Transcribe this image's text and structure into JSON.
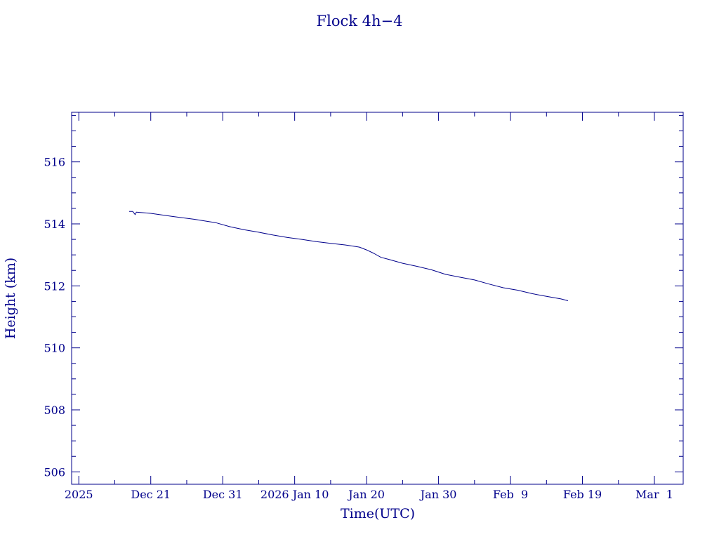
{
  "chart_data": {
    "type": "line",
    "title": "Flock 4h−4",
    "xlabel": "Time(UTC)",
    "ylabel": "Height (km)",
    "x_type": "date",
    "xlim": [
      "2025-12-10",
      "2026-03-05"
    ],
    "ylim": [
      505.6,
      517.6
    ],
    "x_ticks": [
      {
        "value": "2025-12-11",
        "label": "2025"
      },
      {
        "value": "2025-12-21",
        "label": "Dec 21"
      },
      {
        "value": "2025-12-31",
        "label": "Dec 31"
      },
      {
        "value": "2026-01-10",
        "label": "2026 Jan 10"
      },
      {
        "value": "2026-01-20",
        "label": "Jan 20"
      },
      {
        "value": "2026-01-30",
        "label": "Jan 30"
      },
      {
        "value": "2026-02-09",
        "label": "Feb  9"
      },
      {
        "value": "2026-02-19",
        "label": "Feb 19"
      },
      {
        "value": "2026-03-01",
        "label": "Mar  1"
      }
    ],
    "y_ticks": [
      506,
      508,
      510,
      512,
      514,
      516
    ],
    "grid": false,
    "colors": {
      "axis": "#00008b",
      "line": "#00008b",
      "background": "#ffffff"
    },
    "series": [
      {
        "values": [
          {
            "x": "2025-12-18",
            "y": 514.4
          },
          {
            "x": "2025-12-18T12:00",
            "y": 514.4
          },
          {
            "x": "2025-12-18T20:00",
            "y": 514.3
          },
          {
            "x": "2025-12-19",
            "y": 514.38
          },
          {
            "x": "2025-12-21",
            "y": 514.34
          },
          {
            "x": "2025-12-24",
            "y": 514.24
          },
          {
            "x": "2025-12-27",
            "y": 514.15
          },
          {
            "x": "2025-12-30",
            "y": 514.04
          },
          {
            "x": "2026-01-01",
            "y": 513.91
          },
          {
            "x": "2026-01-03",
            "y": 513.81
          },
          {
            "x": "2026-01-05",
            "y": 513.73
          },
          {
            "x": "2026-01-07",
            "y": 513.64
          },
          {
            "x": "2026-01-09",
            "y": 513.56
          },
          {
            "x": "2026-01-11",
            "y": 513.5
          },
          {
            "x": "2026-01-13",
            "y": 513.43
          },
          {
            "x": "2026-01-15",
            "y": 513.37
          },
          {
            "x": "2026-01-17",
            "y": 513.32
          },
          {
            "x": "2026-01-19",
            "y": 513.25
          },
          {
            "x": "2026-01-20",
            "y": 513.16
          },
          {
            "x": "2026-01-21",
            "y": 513.05
          },
          {
            "x": "2026-01-22",
            "y": 512.92
          },
          {
            "x": "2026-01-23",
            "y": 512.86
          },
          {
            "x": "2026-01-25",
            "y": 512.73
          },
          {
            "x": "2026-01-27",
            "y": 512.63
          },
          {
            "x": "2026-01-29",
            "y": 512.52
          },
          {
            "x": "2026-01-31",
            "y": 512.37
          },
          {
            "x": "2026-02-02",
            "y": 512.28
          },
          {
            "x": "2026-02-04",
            "y": 512.19
          },
          {
            "x": "2026-02-06",
            "y": 512.06
          },
          {
            "x": "2026-02-08",
            "y": 511.94
          },
          {
            "x": "2026-02-10",
            "y": 511.86
          },
          {
            "x": "2026-02-12",
            "y": 511.75
          },
          {
            "x": "2026-02-14",
            "y": 511.66
          },
          {
            "x": "2026-02-16",
            "y": 511.58
          },
          {
            "x": "2026-02-17",
            "y": 511.52
          }
        ]
      }
    ]
  }
}
